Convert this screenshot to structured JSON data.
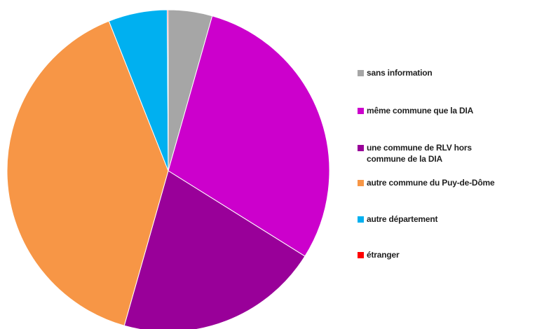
{
  "chart_data": {
    "type": "pie",
    "categories": [
      "sans information",
      "même commune que la DIA",
      "une commune de RLV hors commune de la DIA",
      "autre commune du Puy-de-Dôme",
      "autre département",
      "étranger"
    ],
    "values": [
      4.4,
      29.5,
      20.5,
      39.6,
      5.9,
      0.1
    ],
    "colors": [
      "#a6a6a6",
      "#cc00cc",
      "#990099",
      "#f79646",
      "#00b0f0",
      "#ff0000"
    ],
    "legend": "right"
  }
}
